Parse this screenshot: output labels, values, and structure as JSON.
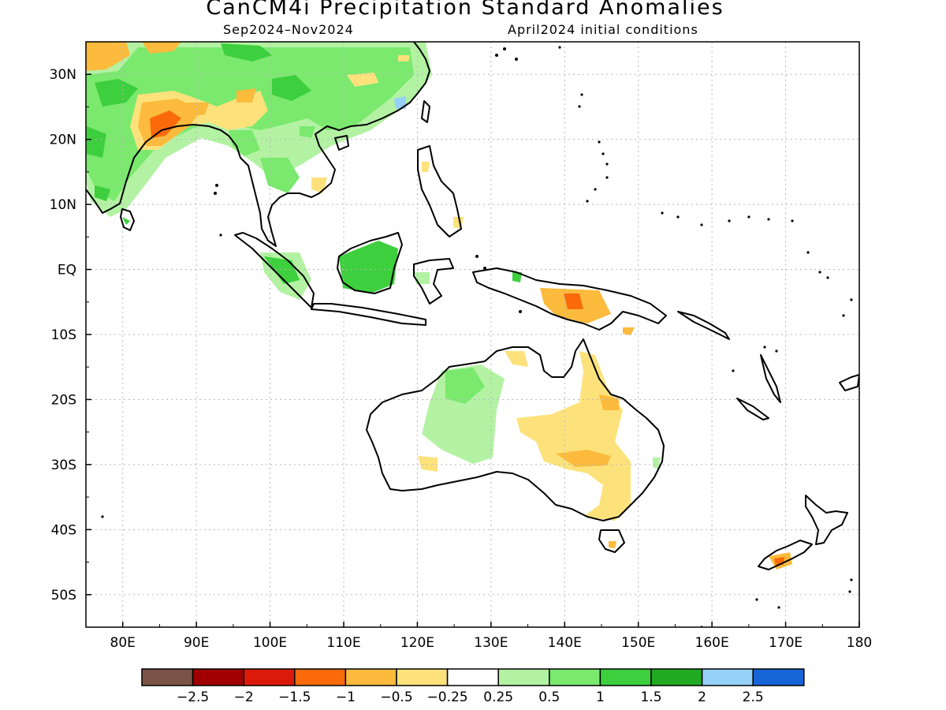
{
  "title": "CanCM4i Precipitation Standard Anomalies",
  "period": "Sep2024–Nov2024",
  "initial_conditions": "April2024 initial conditions",
  "map": {
    "lon_range": [
      75,
      180
    ],
    "lat_range": [
      -55,
      35
    ],
    "lon_labels": [
      "80E",
      "90E",
      "100E",
      "110E",
      "120E",
      "130E",
      "140E",
      "150E",
      "160E",
      "170E",
      "180"
    ],
    "lat_labels": [
      "30N",
      "20N",
      "10N",
      "EQ",
      "10S",
      "20S",
      "30S",
      "40S",
      "50S"
    ],
    "grid": "dotted"
  },
  "legend": {
    "colors": [
      "#7b5347",
      "#a00000",
      "#dc1a0a",
      "#fa6a0a",
      "#fcbb3c",
      "#fde27c",
      "#ffffff",
      "#b3f2a3",
      "#7ae96e",
      "#3dcf3d",
      "#22aa22",
      "#95d1f8",
      "#1665d6"
    ],
    "labels": [
      "−2.5",
      "−2",
      "−1.5",
      "−1",
      "−0.5",
      "−0.25",
      "0.25",
      "0.5",
      "1",
      "1.5",
      "2",
      "2.5"
    ]
  }
}
